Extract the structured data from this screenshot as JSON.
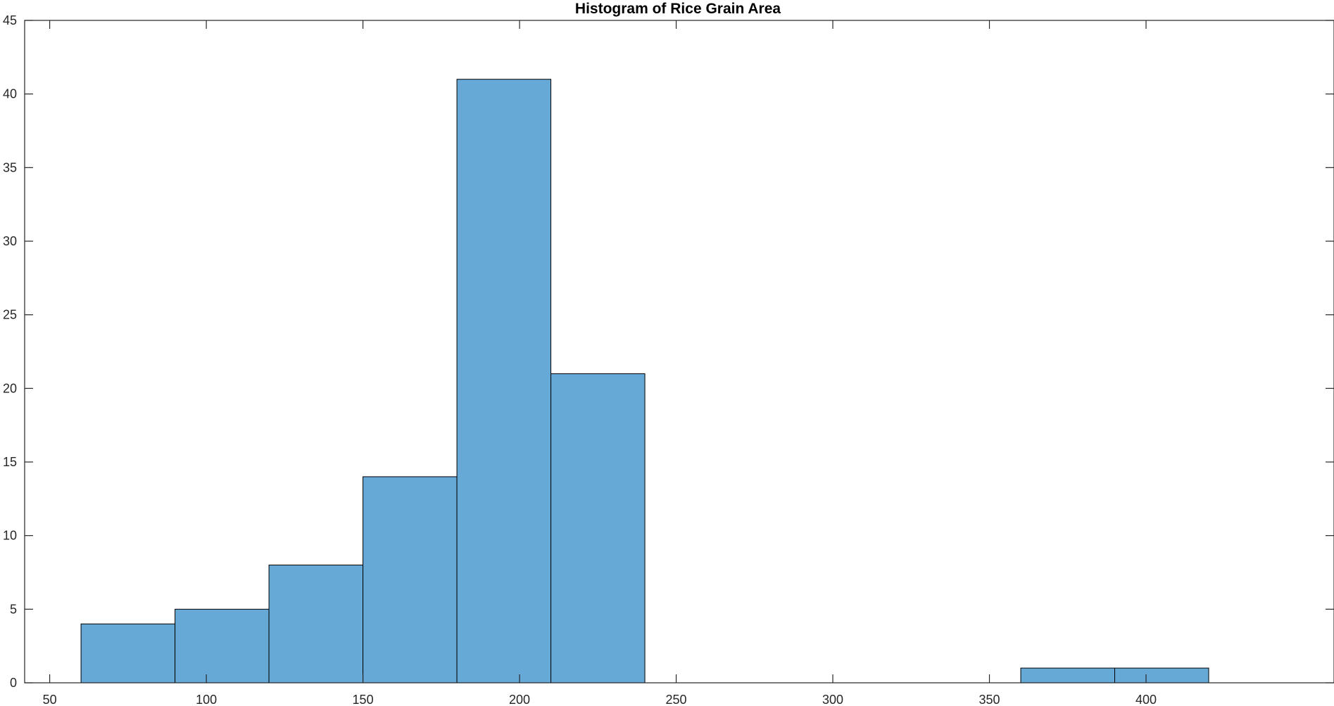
{
  "chart_data": {
    "type": "bar",
    "title": "Histogram of Rice Grain Area",
    "xlabel": "",
    "ylabel": "",
    "xlim": [
      42,
      460
    ],
    "ylim": [
      0,
      45
    ],
    "xticks": [
      50,
      100,
      150,
      200,
      250,
      300,
      350,
      400
    ],
    "yticks": [
      0,
      5,
      10,
      15,
      20,
      25,
      30,
      35,
      40,
      45
    ],
    "bins": [
      {
        "start": 60,
        "end": 90,
        "count": 4
      },
      {
        "start": 90,
        "end": 120,
        "count": 5
      },
      {
        "start": 120,
        "end": 150,
        "count": 8
      },
      {
        "start": 150,
        "end": 180,
        "count": 14
      },
      {
        "start": 180,
        "end": 210,
        "count": 41
      },
      {
        "start": 210,
        "end": 240,
        "count": 21
      },
      {
        "start": 240,
        "end": 270,
        "count": 0
      },
      {
        "start": 270,
        "end": 300,
        "count": 0
      },
      {
        "start": 300,
        "end": 330,
        "count": 0
      },
      {
        "start": 330,
        "end": 360,
        "count": 0
      },
      {
        "start": 360,
        "end": 390,
        "count": 1
      },
      {
        "start": 390,
        "end": 420,
        "count": 1
      }
    ],
    "grid": false,
    "legend": "none",
    "bar_color": "#66a9d7",
    "edge_color": "#000000",
    "axis_color": "#262626"
  }
}
